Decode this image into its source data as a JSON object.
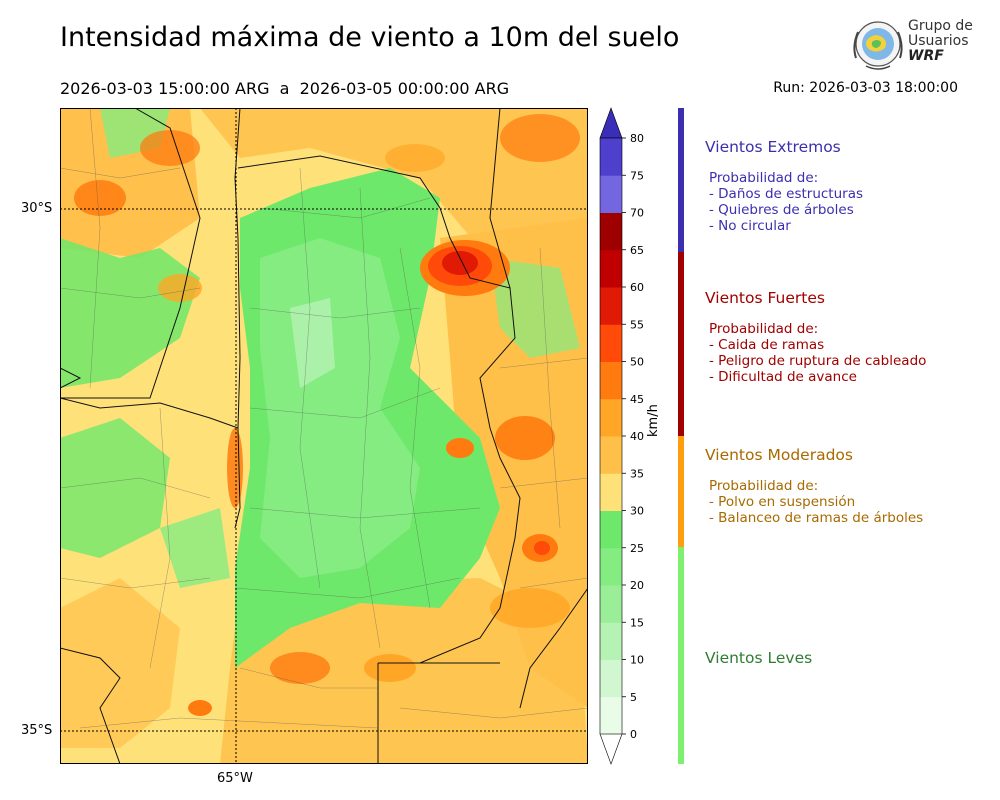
{
  "header": {
    "title": "Intensidad máxima de viento a 10m del suelo",
    "period": "2026-03-03 15:00:00 ARG  a  2026-03-05 00:00:00 ARG",
    "run": "Run: 2026-03-03 18:00:00"
  },
  "logo": {
    "line1": "Grupo de",
    "line2": "Usuarios",
    "line3": "WRF"
  },
  "map": {
    "lat_labels": [
      "30°S",
      "35°S"
    ],
    "lon_labels": [
      "65°W"
    ]
  },
  "colorbar": {
    "unit": "km/h",
    "ticks": [
      "0",
      "5",
      "10",
      "15",
      "20",
      "25",
      "30",
      "35",
      "40",
      "45",
      "50",
      "55",
      "60",
      "65",
      "70",
      "75",
      "80"
    ],
    "colors": [
      "#e8fce8",
      "#d0f7cf",
      "#b6f2b4",
      "#9aee97",
      "#84ec80",
      "#6ee86a",
      "#ffe17a",
      "#ffc04a",
      "#ffa626",
      "#ff7b10",
      "#ff4a0a",
      "#e01a05",
      "#c00000",
      "#9e0000",
      "#7466e0",
      "#4e40cc",
      "#3a2db8"
    ],
    "extend_color": "#3a2db8"
  },
  "categories": [
    {
      "title": "Vientos Extremos",
      "color": "#3b2fb0",
      "text_color": "#3b2fb0",
      "heading": "Probabilidad de:",
      "items": [
        "- Daños de estructuras",
        "- Quiebres de árboles",
        "- No circular"
      ]
    },
    {
      "title": "Vientos Fuertes",
      "color": "#a10000",
      "text_color": "#a10000",
      "heading": "Probabilidad de:",
      "items": [
        "- Caida de ramas",
        "- Peligro de ruptura de cableado",
        "- Dificultad de avance"
      ]
    },
    {
      "title": "Vientos Moderados",
      "color": "#ff9f10",
      "text_color": "#a86a00",
      "heading": "Probabilidad de:",
      "items": [
        "- Polvo en suspensión",
        "- Balanceo de ramas de árboles"
      ]
    },
    {
      "title": "Vientos Leves",
      "color": "#7ef070",
      "text_color": "#2e7d32",
      "heading": "",
      "items": []
    }
  ]
}
